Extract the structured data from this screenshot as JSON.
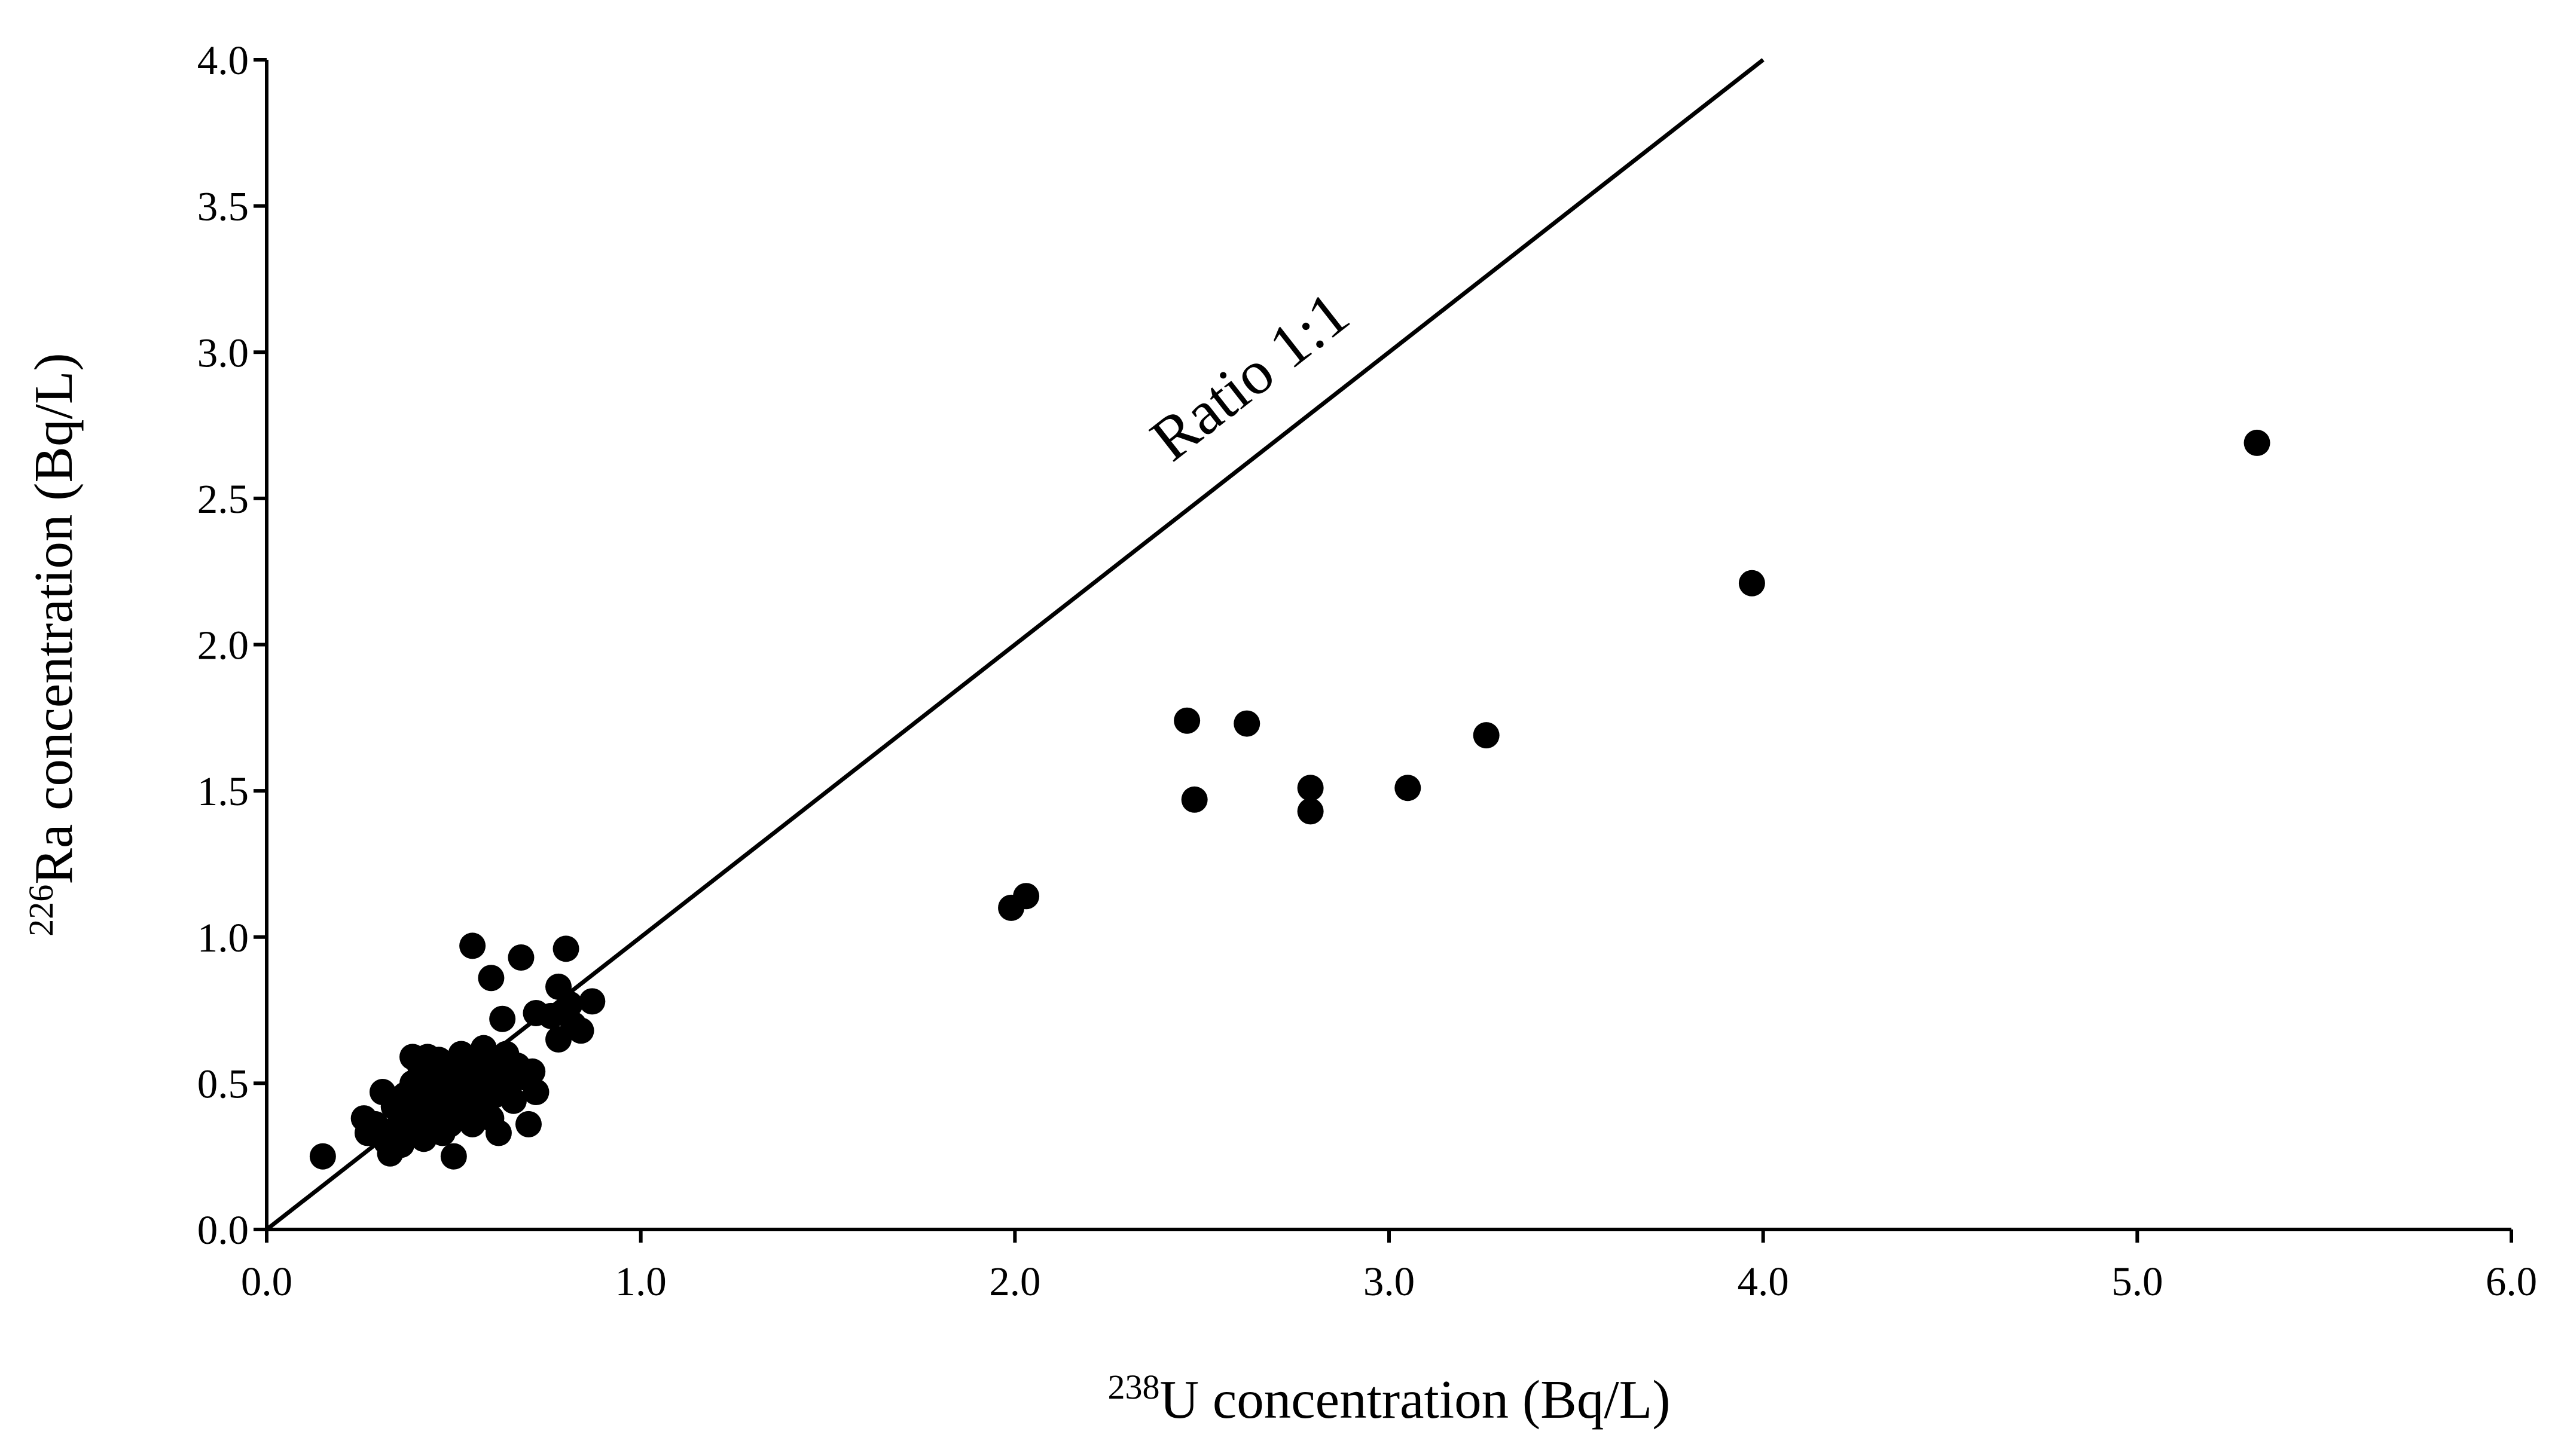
{
  "chart_data": {
    "type": "scatter",
    "xlabel": {
      "sup": "238",
      "text": "U concentration (Bq/L)"
    },
    "ylabel": {
      "sup": "226",
      "text": "Ra concentration (Bq/L)"
    },
    "xlim": [
      0,
      6
    ],
    "ylim": [
      0,
      4
    ],
    "x_ticks": [
      "0.0",
      "1.0",
      "2.0",
      "3.0",
      "4.0",
      "5.0",
      "6.0"
    ],
    "y_ticks": [
      "0.0",
      "0.5",
      "1.0",
      "1.5",
      "2.0",
      "2.5",
      "3.0",
      "3.5",
      "4.0"
    ],
    "reference_line": {
      "label": "Ratio 1:1",
      "from": [
        0,
        0
      ],
      "to": [
        4,
        4
      ]
    },
    "grid": false,
    "legend": "none",
    "points": [
      [
        0.15,
        0.25
      ],
      [
        0.26,
        0.38
      ],
      [
        0.27,
        0.33
      ],
      [
        0.29,
        0.36
      ],
      [
        0.31,
        0.47
      ],
      [
        0.32,
        0.3
      ],
      [
        0.33,
        0.26
      ],
      [
        0.34,
        0.42
      ],
      [
        0.35,
        0.35
      ],
      [
        0.36,
        0.29
      ],
      [
        0.37,
        0.4
      ],
      [
        0.37,
        0.46
      ],
      [
        0.38,
        0.33
      ],
      [
        0.39,
        0.5
      ],
      [
        0.4,
        0.37
      ],
      [
        0.4,
        0.44
      ],
      [
        0.41,
        0.56
      ],
      [
        0.42,
        0.31
      ],
      [
        0.42,
        0.48
      ],
      [
        0.43,
        0.4
      ],
      [
        0.44,
        0.35
      ],
      [
        0.44,
        0.53
      ],
      [
        0.45,
        0.45
      ],
      [
        0.46,
        0.38
      ],
      [
        0.46,
        0.58
      ],
      [
        0.47,
        0.33
      ],
      [
        0.48,
        0.5
      ],
      [
        0.48,
        0.42
      ],
      [
        0.49,
        0.36
      ],
      [
        0.5,
        0.55
      ],
      [
        0.5,
        0.25
      ],
      [
        0.51,
        0.46
      ],
      [
        0.52,
        0.4
      ],
      [
        0.52,
        0.6
      ],
      [
        0.53,
        0.52
      ],
      [
        0.54,
        0.44
      ],
      [
        0.55,
        0.97
      ],
      [
        0.55,
        0.36
      ],
      [
        0.56,
        0.57
      ],
      [
        0.57,
        0.48
      ],
      [
        0.57,
        0.42
      ],
      [
        0.58,
        0.62
      ],
      [
        0.59,
        0.52
      ],
      [
        0.6,
        0.38
      ],
      [
        0.6,
        0.86
      ],
      [
        0.61,
        0.46
      ],
      [
        0.62,
        0.55
      ],
      [
        0.62,
        0.33
      ],
      [
        0.63,
        0.72
      ],
      [
        0.64,
        0.6
      ],
      [
        0.65,
        0.5
      ],
      [
        0.66,
        0.44
      ],
      [
        0.67,
        0.56
      ],
      [
        0.68,
        0.93
      ],
      [
        0.69,
        0.52
      ],
      [
        0.7,
        0.36
      ],
      [
        0.71,
        0.54
      ],
      [
        0.72,
        0.74
      ],
      [
        0.72,
        0.47
      ],
      [
        0.76,
        0.73
      ],
      [
        0.78,
        0.65
      ],
      [
        0.78,
        0.83
      ],
      [
        0.8,
        0.96
      ],
      [
        0.81,
        0.77
      ],
      [
        0.82,
        0.7
      ],
      [
        0.84,
        0.68
      ],
      [
        0.87,
        0.78
      ],
      [
        0.39,
        0.59
      ],
      [
        0.43,
        0.59
      ],
      [
        0.58,
        0.44
      ],
      [
        1.99,
        1.1
      ],
      [
        2.03,
        1.14
      ],
      [
        2.46,
        1.74
      ],
      [
        2.48,
        1.47
      ],
      [
        2.62,
        1.73
      ],
      [
        2.79,
        1.51
      ],
      [
        2.79,
        1.43
      ],
      [
        3.05,
        1.51
      ],
      [
        3.26,
        1.69
      ],
      [
        3.97,
        2.21
      ],
      [
        5.32,
        2.69
      ]
    ]
  }
}
